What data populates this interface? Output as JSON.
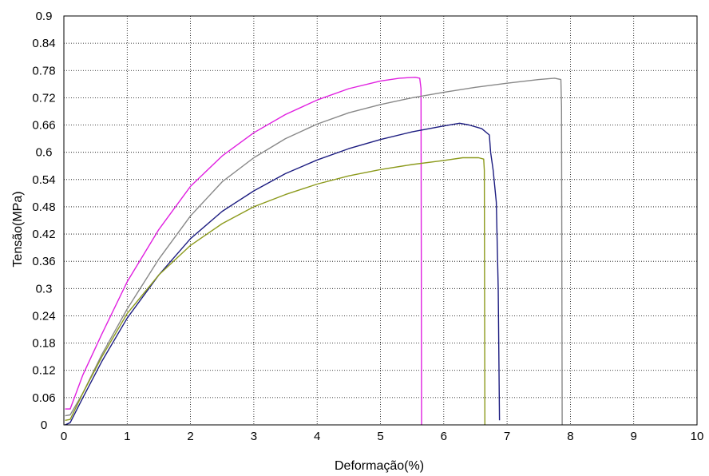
{
  "chart_data": {
    "type": "line",
    "title": "",
    "xlabel": "Deformação(%)",
    "ylabel": "Tensão(MPa)",
    "xlim": [
      0,
      10
    ],
    "ylim": [
      0,
      0.9
    ],
    "grid": true,
    "x_ticks": [
      "0",
      "1",
      "2",
      "3",
      "4",
      "5",
      "6",
      "7",
      "8",
      "9",
      "10"
    ],
    "y_ticks": [
      "0",
      "0.06",
      "0.12",
      "0.18",
      "0.24",
      "0.3",
      "0.36",
      "0.42",
      "0.48",
      "0.54",
      "0.6",
      "0.66",
      "0.72",
      "0.78",
      "0.84",
      "0.9"
    ],
    "series": [
      {
        "color": "#e020e0",
        "points": [
          [
            0.02,
            0.035
          ],
          [
            0.1,
            0.035
          ],
          [
            0.3,
            0.11
          ],
          [
            0.6,
            0.2
          ],
          [
            1.0,
            0.315
          ],
          [
            1.5,
            0.43
          ],
          [
            2.0,
            0.525
          ],
          [
            2.5,
            0.592
          ],
          [
            3.0,
            0.643
          ],
          [
            3.5,
            0.683
          ],
          [
            4.0,
            0.715
          ],
          [
            4.5,
            0.74
          ],
          [
            5.0,
            0.757
          ],
          [
            5.3,
            0.763
          ],
          [
            5.55,
            0.765
          ],
          [
            5.62,
            0.763
          ],
          [
            5.64,
            0.74
          ],
          [
            5.65,
            0.0
          ]
        ]
      },
      {
        "color": "#888888",
        "points": [
          [
            0.02,
            0.02
          ],
          [
            0.1,
            0.022
          ],
          [
            0.3,
            0.07
          ],
          [
            0.6,
            0.155
          ],
          [
            1.0,
            0.255
          ],
          [
            1.5,
            0.365
          ],
          [
            2.0,
            0.46
          ],
          [
            2.5,
            0.535
          ],
          [
            3.0,
            0.588
          ],
          [
            3.5,
            0.63
          ],
          [
            4.0,
            0.662
          ],
          [
            4.5,
            0.687
          ],
          [
            5.0,
            0.705
          ],
          [
            5.5,
            0.72
          ],
          [
            6.0,
            0.732
          ],
          [
            6.5,
            0.743
          ],
          [
            7.0,
            0.752
          ],
          [
            7.5,
            0.76
          ],
          [
            7.75,
            0.763
          ],
          [
            7.85,
            0.76
          ],
          [
            7.86,
            0.7
          ],
          [
            7.87,
            0.0
          ]
        ]
      },
      {
        "color": "#1c1c80",
        "points": [
          [
            0.02,
            0.0
          ],
          [
            0.1,
            0.005
          ],
          [
            0.3,
            0.06
          ],
          [
            0.6,
            0.14
          ],
          [
            1.0,
            0.235
          ],
          [
            1.5,
            0.33
          ],
          [
            2.0,
            0.41
          ],
          [
            2.5,
            0.47
          ],
          [
            3.0,
            0.515
          ],
          [
            3.5,
            0.553
          ],
          [
            4.0,
            0.583
          ],
          [
            4.5,
            0.608
          ],
          [
            5.0,
            0.628
          ],
          [
            5.5,
            0.645
          ],
          [
            6.0,
            0.658
          ],
          [
            6.25,
            0.664
          ],
          [
            6.4,
            0.66
          ],
          [
            6.6,
            0.652
          ],
          [
            6.72,
            0.638
          ],
          [
            6.74,
            0.6
          ],
          [
            6.78,
            0.56
          ],
          [
            6.83,
            0.49
          ],
          [
            6.86,
            0.3
          ],
          [
            6.88,
            0.01
          ]
        ]
      },
      {
        "color": "#8c9a1c",
        "points": [
          [
            0.02,
            0.01
          ],
          [
            0.1,
            0.012
          ],
          [
            0.3,
            0.07
          ],
          [
            0.6,
            0.15
          ],
          [
            1.0,
            0.245
          ],
          [
            1.5,
            0.33
          ],
          [
            2.0,
            0.395
          ],
          [
            2.5,
            0.443
          ],
          [
            3.0,
            0.48
          ],
          [
            3.5,
            0.507
          ],
          [
            4.0,
            0.53
          ],
          [
            4.5,
            0.548
          ],
          [
            5.0,
            0.562
          ],
          [
            5.5,
            0.573
          ],
          [
            6.0,
            0.582
          ],
          [
            6.3,
            0.588
          ],
          [
            6.55,
            0.588
          ],
          [
            6.63,
            0.585
          ],
          [
            6.64,
            0.56
          ],
          [
            6.65,
            0.0
          ]
        ]
      }
    ]
  }
}
